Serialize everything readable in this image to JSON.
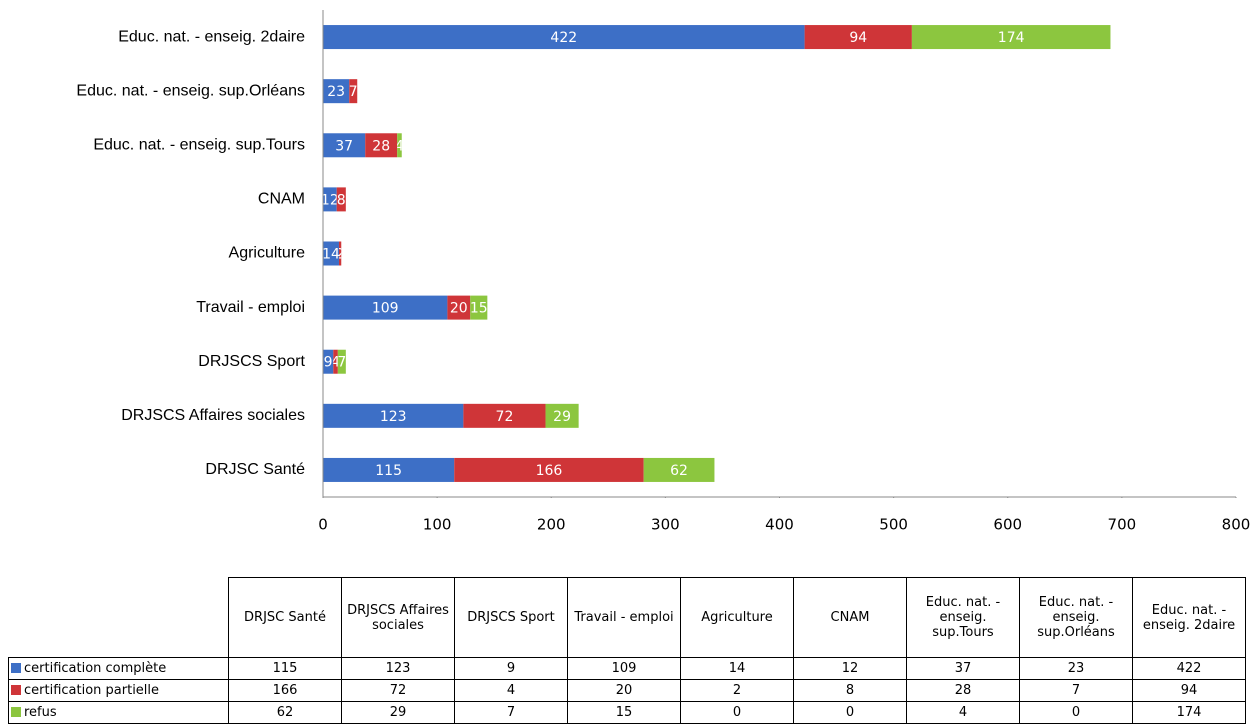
{
  "chart_data": {
    "type": "bar",
    "orientation": "horizontal",
    "stacked": true,
    "categories": [
      "DRJSC Santé",
      "DRJSCS Affaires sociales",
      "DRJSCS Sport",
      "Travail - emploi",
      "Agriculture",
      "CNAM",
      "Educ. nat. - enseig. sup.Tours",
      "Educ. nat. - enseig. sup.Orléans",
      "Educ. nat. - enseig. 2daire"
    ],
    "series": [
      {
        "name": "certification complète",
        "color": "#3d6fc6",
        "values": [
          115,
          123,
          9,
          109,
          14,
          12,
          37,
          23,
          422
        ]
      },
      {
        "name": "certification partielle",
        "color": "#cf3538",
        "values": [
          166,
          72,
          4,
          20,
          2,
          8,
          28,
          7,
          94
        ]
      },
      {
        "name": "refus",
        "color": "#8cc63f",
        "values": [
          62,
          29,
          7,
          15,
          0,
          0,
          4,
          0,
          174
        ]
      }
    ],
    "xlim": [
      0,
      800
    ],
    "xticks": [
      0,
      100,
      200,
      300,
      400,
      500,
      600,
      700,
      800
    ],
    "data_labels": true,
    "data_table": true
  }
}
